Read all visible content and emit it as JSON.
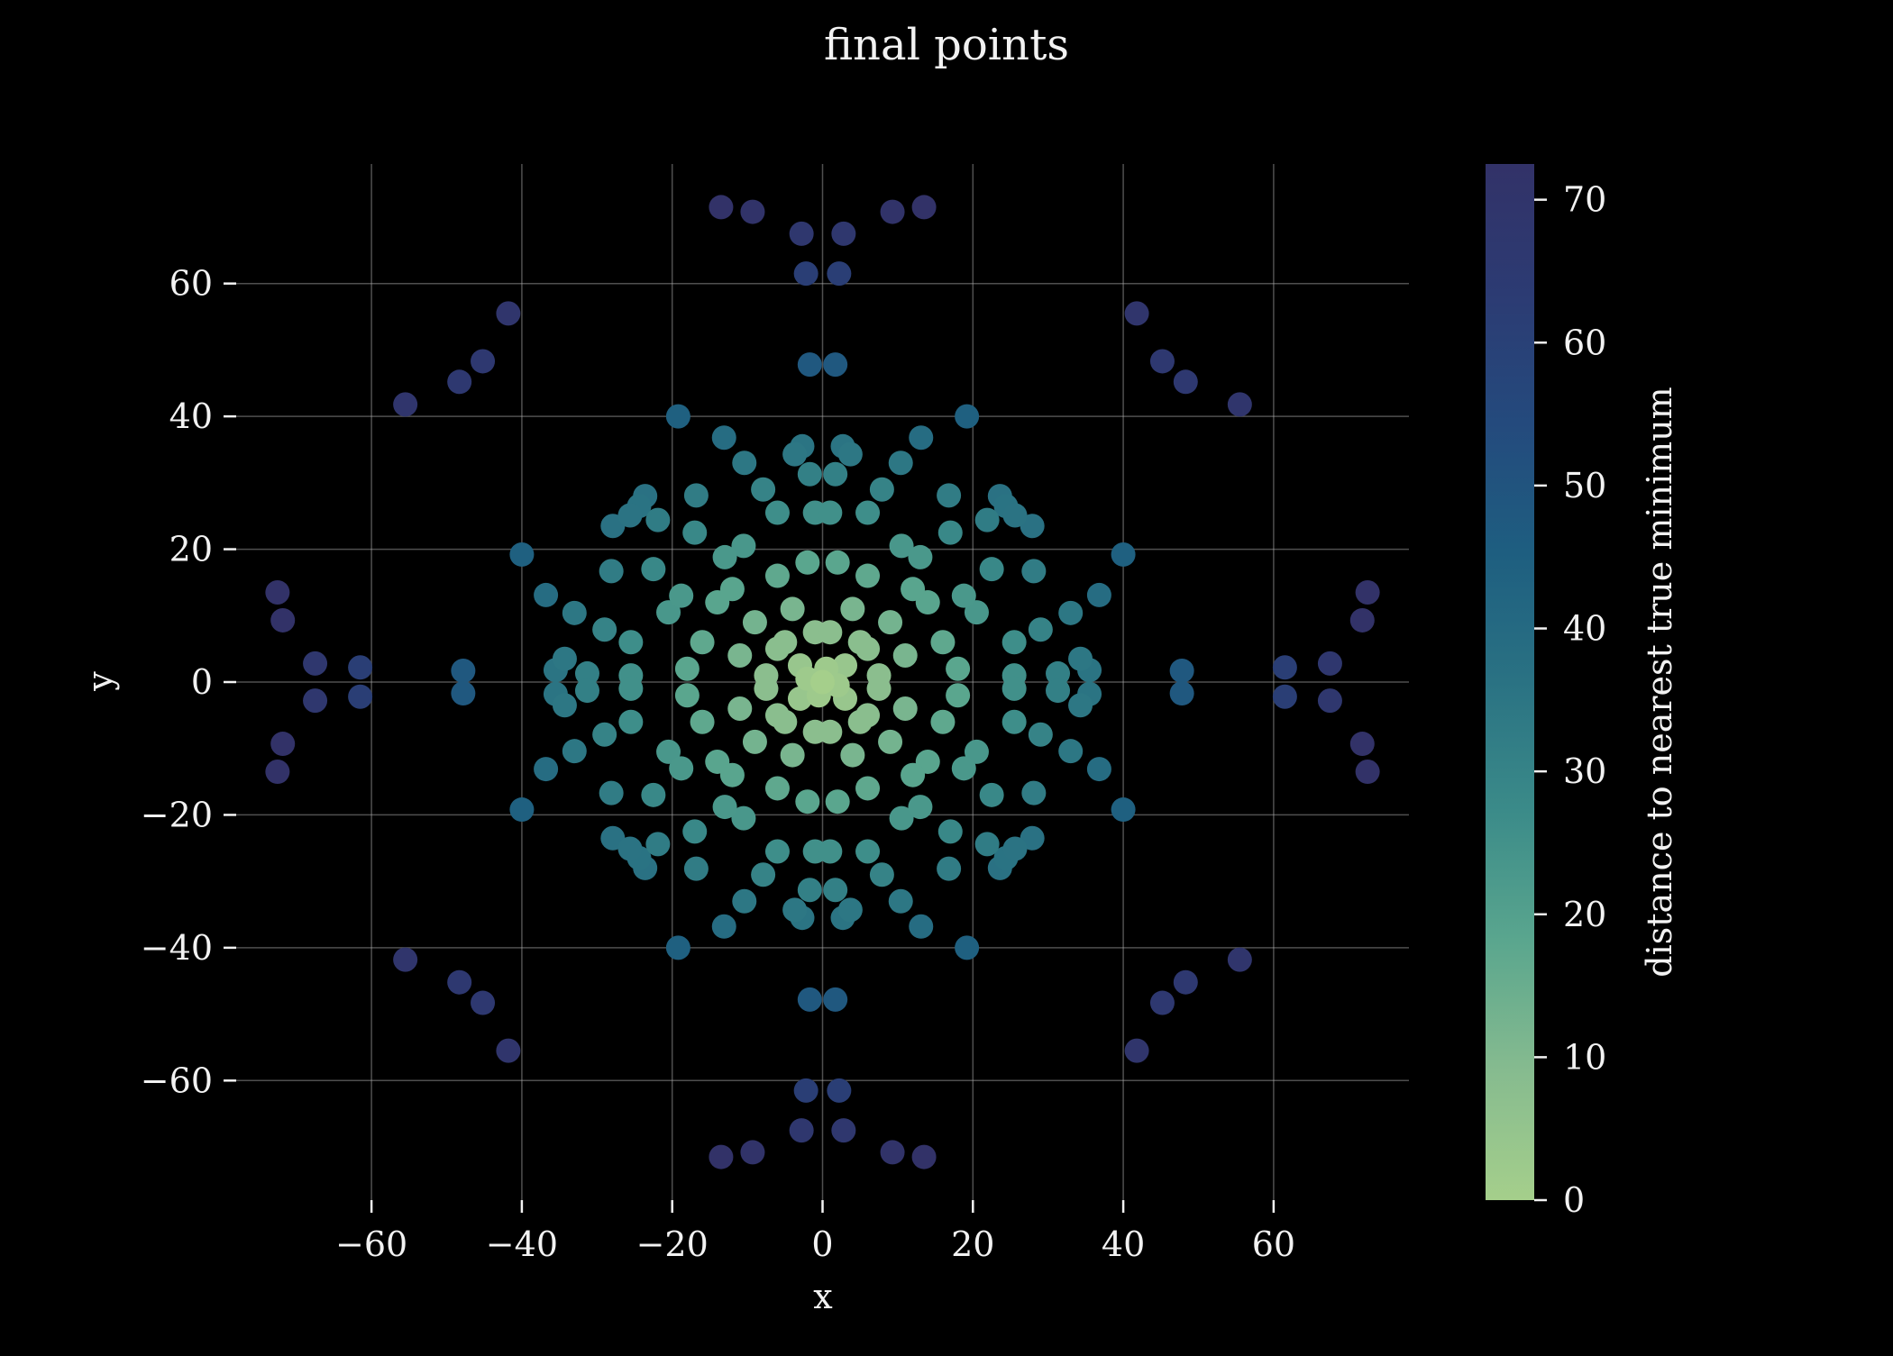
{
  "chart_data": {
    "type": "scatter",
    "title": "final points",
    "xlabel": "x",
    "ylabel": "y",
    "xlim": [
      -78,
      78
    ],
    "ylim": [
      -78,
      78
    ],
    "x_ticks": [
      -60,
      -40,
      -20,
      0,
      20,
      40,
      60
    ],
    "y_ticks": [
      -60,
      -40,
      -20,
      0,
      20,
      40,
      60
    ],
    "x_tick_labels": [
      "−60",
      "−40",
      "−20",
      "0",
      "20",
      "40",
      "60"
    ],
    "y_tick_labels": [
      "−60",
      "−40",
      "−20",
      "0",
      "20",
      "40",
      "60"
    ],
    "grid": true,
    "colorbar": {
      "label": "distance to nearest true minimum",
      "range": [
        0,
        72.5
      ],
      "ticks": [
        0,
        10,
        20,
        30,
        40,
        50,
        60,
        70
      ],
      "tick_labels": [
        "0",
        "10",
        "20",
        "30",
        "40",
        "50",
        "60",
        "70"
      ],
      "colors": [
        "#a5cf8b",
        "#86bb8f",
        "#5aa68e",
        "#3b8b89",
        "#2a7283",
        "#1e5e80",
        "#244a7d",
        "#2c3b73",
        "#323268"
      ]
    },
    "points": [
      [
        -13.5,
        71.5
      ],
      [
        -9.3,
        70.8
      ],
      [
        9.3,
        70.8
      ],
      [
        13.5,
        71.5
      ],
      [
        -2.8,
        67.5
      ],
      [
        2.8,
        67.5
      ],
      [
        -2.2,
        61.5
      ],
      [
        2.2,
        61.5
      ],
      [
        -41.8,
        55.5
      ],
      [
        41.8,
        55.5
      ],
      [
        -45.2,
        48.3
      ],
      [
        45.2,
        48.3
      ],
      [
        -48.3,
        45.2
      ],
      [
        48.3,
        45.2
      ],
      [
        -55.5,
        41.8
      ],
      [
        55.5,
        41.8
      ],
      [
        -1.7,
        47.8
      ],
      [
        1.7,
        47.8
      ],
      [
        -19.2,
        40.0
      ],
      [
        19.2,
        40.0
      ],
      [
        -13.1,
        36.8
      ],
      [
        13.1,
        36.8
      ],
      [
        -2.7,
        35.5
      ],
      [
        2.7,
        35.5
      ],
      [
        -3.7,
        34.3
      ],
      [
        3.7,
        34.3
      ],
      [
        -10.4,
        33.0
      ],
      [
        10.4,
        33.0
      ],
      [
        -1.7,
        31.3
      ],
      [
        1.7,
        31.3
      ],
      [
        -7.9,
        29.0
      ],
      [
        7.9,
        29.0
      ],
      [
        -23.6,
        28.0
      ],
      [
        23.6,
        28.0
      ],
      [
        -16.8,
        28.1
      ],
      [
        16.8,
        28.1
      ],
      [
        -24.4,
        26.5
      ],
      [
        24.4,
        26.5
      ],
      [
        -25.6,
        25.1
      ],
      [
        25.6,
        25.1
      ],
      [
        -27.9,
        23.5
      ],
      [
        27.9,
        23.5
      ],
      [
        -21.9,
        24.4
      ],
      [
        21.9,
        24.4
      ],
      [
        -28.1,
        16.7
      ],
      [
        28.1,
        16.7
      ],
      [
        -40.0,
        19.2
      ],
      [
        40.0,
        19.2
      ],
      [
        -36.8,
        13.1
      ],
      [
        36.8,
        13.1
      ],
      [
        -33.0,
        10.4
      ],
      [
        33.0,
        10.4
      ],
      [
        -29.0,
        7.9
      ],
      [
        29.0,
        7.9
      ],
      [
        -34.3,
        3.5
      ],
      [
        34.3,
        3.5
      ],
      [
        -35.5,
        1.8
      ],
      [
        35.5,
        1.8
      ],
      [
        -31.3,
        1.3
      ],
      [
        31.3,
        1.3
      ],
      [
        -72.5,
        13.5
      ],
      [
        72.5,
        13.5
      ],
      [
        -71.8,
        9.3
      ],
      [
        71.8,
        9.3
      ],
      [
        -67.5,
        2.8
      ],
      [
        67.5,
        2.8
      ],
      [
        -61.5,
        2.2
      ],
      [
        61.5,
        2.2
      ],
      [
        -47.8,
        1.7
      ],
      [
        47.8,
        1.7
      ],
      [
        -13.5,
        -71.5
      ],
      [
        -9.3,
        -70.8
      ],
      [
        9.3,
        -70.8
      ],
      [
        13.5,
        -71.5
      ],
      [
        -2.8,
        -67.5
      ],
      [
        2.8,
        -67.5
      ],
      [
        -2.2,
        -61.5
      ],
      [
        2.2,
        -61.5
      ],
      [
        -41.8,
        -55.5
      ],
      [
        41.8,
        -55.5
      ],
      [
        -45.2,
        -48.3
      ],
      [
        45.2,
        -48.3
      ],
      [
        -48.3,
        -45.2
      ],
      [
        48.3,
        -45.2
      ],
      [
        -55.5,
        -41.8
      ],
      [
        55.5,
        -41.8
      ],
      [
        -1.7,
        -47.8
      ],
      [
        1.7,
        -47.8
      ],
      [
        -19.2,
        -40.0
      ],
      [
        19.2,
        -40.0
      ],
      [
        -13.1,
        -36.8
      ],
      [
        13.1,
        -36.8
      ],
      [
        -2.7,
        -35.5
      ],
      [
        2.7,
        -35.5
      ],
      [
        -3.7,
        -34.3
      ],
      [
        3.7,
        -34.3
      ],
      [
        -10.4,
        -33.0
      ],
      [
        10.4,
        -33.0
      ],
      [
        -1.7,
        -31.3
      ],
      [
        1.7,
        -31.3
      ],
      [
        -7.9,
        -29.0
      ],
      [
        7.9,
        -29.0
      ],
      [
        -23.6,
        -28.0
      ],
      [
        23.6,
        -28.0
      ],
      [
        -16.8,
        -28.1
      ],
      [
        16.8,
        -28.1
      ],
      [
        -24.4,
        -26.5
      ],
      [
        24.4,
        -26.5
      ],
      [
        -25.6,
        -25.1
      ],
      [
        25.6,
        -25.1
      ],
      [
        -27.9,
        -23.5
      ],
      [
        27.9,
        -23.5
      ],
      [
        -21.9,
        -24.4
      ],
      [
        21.9,
        -24.4
      ],
      [
        -28.1,
        -16.7
      ],
      [
        28.1,
        -16.7
      ],
      [
        -40.0,
        -19.2
      ],
      [
        40.0,
        -19.2
      ],
      [
        -36.8,
        -13.1
      ],
      [
        36.8,
        -13.1
      ],
      [
        -33.0,
        -10.4
      ],
      [
        33.0,
        -10.4
      ],
      [
        -29.0,
        -7.9
      ],
      [
        29.0,
        -7.9
      ],
      [
        -34.3,
        -3.5
      ],
      [
        34.3,
        -3.5
      ],
      [
        -35.5,
        -1.8
      ],
      [
        35.5,
        -1.8
      ],
      [
        -31.3,
        -1.3
      ],
      [
        31.3,
        -1.3
      ],
      [
        -72.5,
        -13.5
      ],
      [
        72.5,
        -13.5
      ],
      [
        -71.8,
        -9.3
      ],
      [
        71.8,
        -9.3
      ],
      [
        -67.5,
        -2.8
      ],
      [
        67.5,
        -2.8
      ],
      [
        -61.5,
        -2.2
      ],
      [
        61.5,
        -2.2
      ],
      [
        -47.8,
        -1.7
      ],
      [
        47.8,
        -1.7
      ],
      [
        -17.0,
        22.5
      ],
      [
        17.0,
        22.5
      ],
      [
        -17.0,
        -22.5
      ],
      [
        17.0,
        -22.5
      ],
      [
        -22.5,
        17.0
      ],
      [
        22.5,
        17.0
      ],
      [
        -22.5,
        -17.0
      ],
      [
        22.5,
        -17.0
      ],
      [
        -20.5,
        10.5
      ],
      [
        20.5,
        10.5
      ],
      [
        -20.5,
        -10.5
      ],
      [
        20.5,
        -10.5
      ],
      [
        -10.5,
        20.5
      ],
      [
        10.5,
        20.5
      ],
      [
        -10.5,
        -20.5
      ],
      [
        10.5,
        -20.5
      ],
      [
        -25.5,
        6.0
      ],
      [
        25.5,
        6.0
      ],
      [
        -25.5,
        -6.0
      ],
      [
        25.5,
        -6.0
      ],
      [
        -6.0,
        25.5
      ],
      [
        6.0,
        25.5
      ],
      [
        -6.0,
        -25.5
      ],
      [
        6.0,
        -25.5
      ],
      [
        -25.5,
        1.0
      ],
      [
        25.5,
        1.0
      ],
      [
        -25.5,
        -1.0
      ],
      [
        25.5,
        -1.0
      ],
      [
        -1.0,
        25.5
      ],
      [
        1.0,
        25.5
      ],
      [
        -1.0,
        -25.5
      ],
      [
        1.0,
        -25.5
      ],
      [
        -13.0,
        18.8
      ],
      [
        13.0,
        18.8
      ],
      [
        -13.0,
        -18.8
      ],
      [
        13.0,
        -18.8
      ],
      [
        -18.8,
        13.0
      ],
      [
        18.8,
        13.0
      ],
      [
        -18.8,
        -13.0
      ],
      [
        18.8,
        -13.0
      ],
      [
        -14.0,
        12.0
      ],
      [
        14.0,
        12.0
      ],
      [
        -14.0,
        -12.0
      ],
      [
        14.0,
        -12.0
      ],
      [
        -12.0,
        14.0
      ],
      [
        12.0,
        14.0
      ],
      [
        -12.0,
        -14.0
      ],
      [
        12.0,
        -14.0
      ],
      [
        -16.0,
        6.0
      ],
      [
        16.0,
        6.0
      ],
      [
        -16.0,
        -6.0
      ],
      [
        16.0,
        -6.0
      ],
      [
        -6.0,
        16.0
      ],
      [
        6.0,
        16.0
      ],
      [
        -6.0,
        -16.0
      ],
      [
        6.0,
        -16.0
      ],
      [
        -18.0,
        2.0
      ],
      [
        18.0,
        2.0
      ],
      [
        -18.0,
        -2.0
      ],
      [
        18.0,
        -2.0
      ],
      [
        -2.0,
        18.0
      ],
      [
        2.0,
        18.0
      ],
      [
        -2.0,
        -18.0
      ],
      [
        2.0,
        -18.0
      ],
      [
        -9.0,
        9.0
      ],
      [
        9.0,
        9.0
      ],
      [
        -9.0,
        -9.0
      ],
      [
        9.0,
        -9.0
      ],
      [
        -11.0,
        4.0
      ],
      [
        11.0,
        4.0
      ],
      [
        -11.0,
        -4.0
      ],
      [
        11.0,
        -4.0
      ],
      [
        -4.0,
        11.0
      ],
      [
        4.0,
        11.0
      ],
      [
        -4.0,
        -11.0
      ],
      [
        4.0,
        -11.0
      ],
      [
        -6.0,
        5.0
      ],
      [
        6.0,
        5.0
      ],
      [
        -6.0,
        -5.0
      ],
      [
        6.0,
        -5.0
      ],
      [
        -5.0,
        6.0
      ],
      [
        5.0,
        6.0
      ],
      [
        -5.0,
        -6.0
      ],
      [
        5.0,
        -6.0
      ],
      [
        -3.0,
        2.5
      ],
      [
        3.0,
        2.5
      ],
      [
        -3.0,
        -2.5
      ],
      [
        3.0,
        -2.5
      ],
      [
        -7.5,
        1.0
      ],
      [
        7.5,
        1.0
      ],
      [
        -7.5,
        -1.0
      ],
      [
        7.5,
        -1.0
      ],
      [
        -1.0,
        7.5
      ],
      [
        1.0,
        7.5
      ],
      [
        -1.0,
        -7.5
      ],
      [
        1.0,
        -7.5
      ],
      [
        -2.0,
        0.5
      ],
      [
        0.5,
        2.0
      ],
      [
        -0.5,
        -2.0
      ],
      [
        2.0,
        -0.5
      ],
      [
        0.0,
        0.0
      ]
    ]
  }
}
